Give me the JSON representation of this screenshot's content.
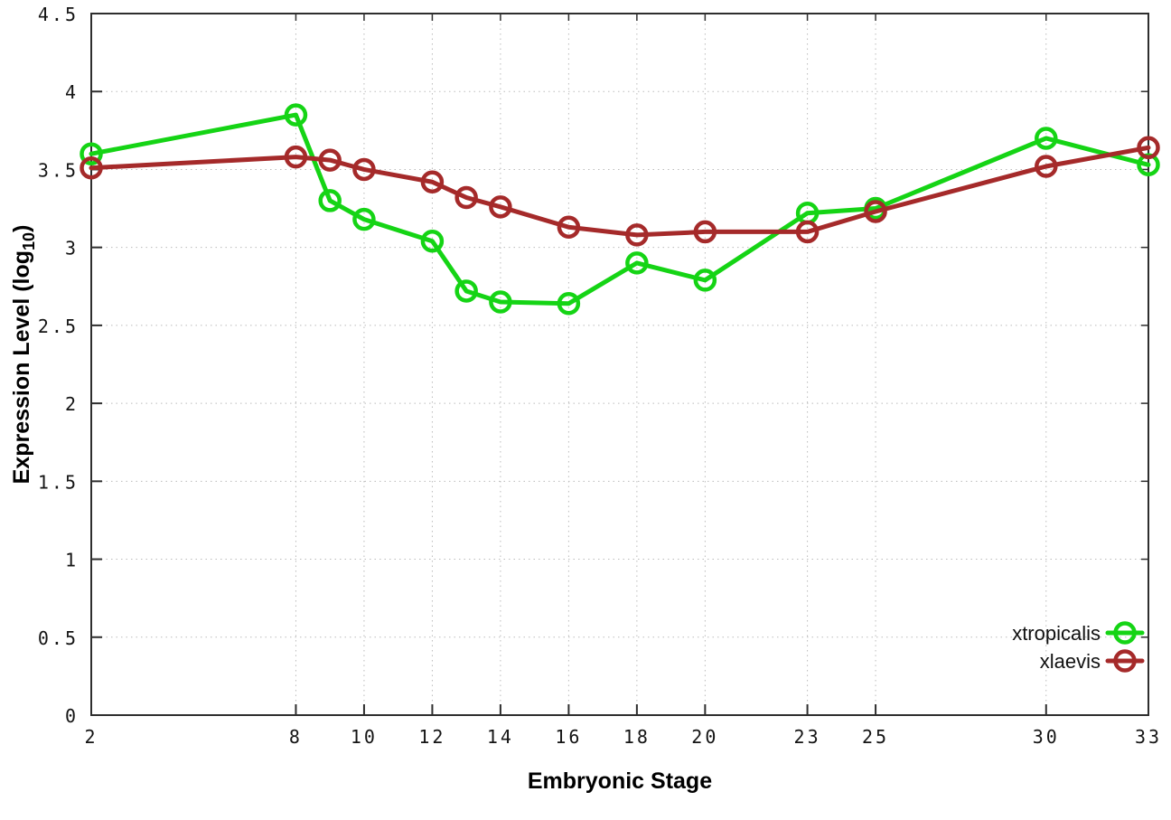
{
  "page": {
    "background_color": "#ffffff"
  },
  "chart_data": {
    "type": "line",
    "title": "",
    "xlabel": "Embryonic Stage",
    "ylabel": "Expression Level (log10)",
    "ylabel_parts": {
      "main": "Expression Level (log",
      "sub": "10",
      "end": ")"
    },
    "x": [
      2,
      8,
      9,
      10,
      12,
      13,
      14,
      16,
      18,
      20,
      23,
      25,
      30,
      33
    ],
    "series": [
      {
        "name": "xtropicalis",
        "color": "#15d415",
        "values": [
          3.6,
          3.85,
          3.3,
          3.18,
          3.04,
          2.72,
          2.65,
          2.64,
          2.9,
          2.79,
          3.22,
          3.25,
          3.7,
          3.53
        ]
      },
      {
        "name": "xlaevis",
        "color": "#a52a2a",
        "values": [
          3.51,
          3.58,
          3.56,
          3.5,
          3.42,
          3.32,
          3.26,
          3.13,
          3.08,
          3.1,
          3.1,
          3.23,
          3.52,
          3.64
        ]
      }
    ],
    "xticks": [
      2,
      8,
      10,
      12,
      14,
      16,
      18,
      20,
      23,
      25,
      30,
      33
    ],
    "yticks": [
      0,
      0.5,
      1,
      1.5,
      2,
      2.5,
      3,
      3.5,
      4,
      4.5
    ],
    "xlim": [
      2,
      33
    ],
    "ylim": [
      0,
      4.5
    ],
    "grid": true,
    "legend_position": "inside-bottom-right",
    "legend": [
      "xtropicalis",
      "xlaevis"
    ],
    "style": {
      "grid_color": "#bbbbbb",
      "axis_color": "#2e2e2e",
      "text_color": "#141414"
    }
  }
}
